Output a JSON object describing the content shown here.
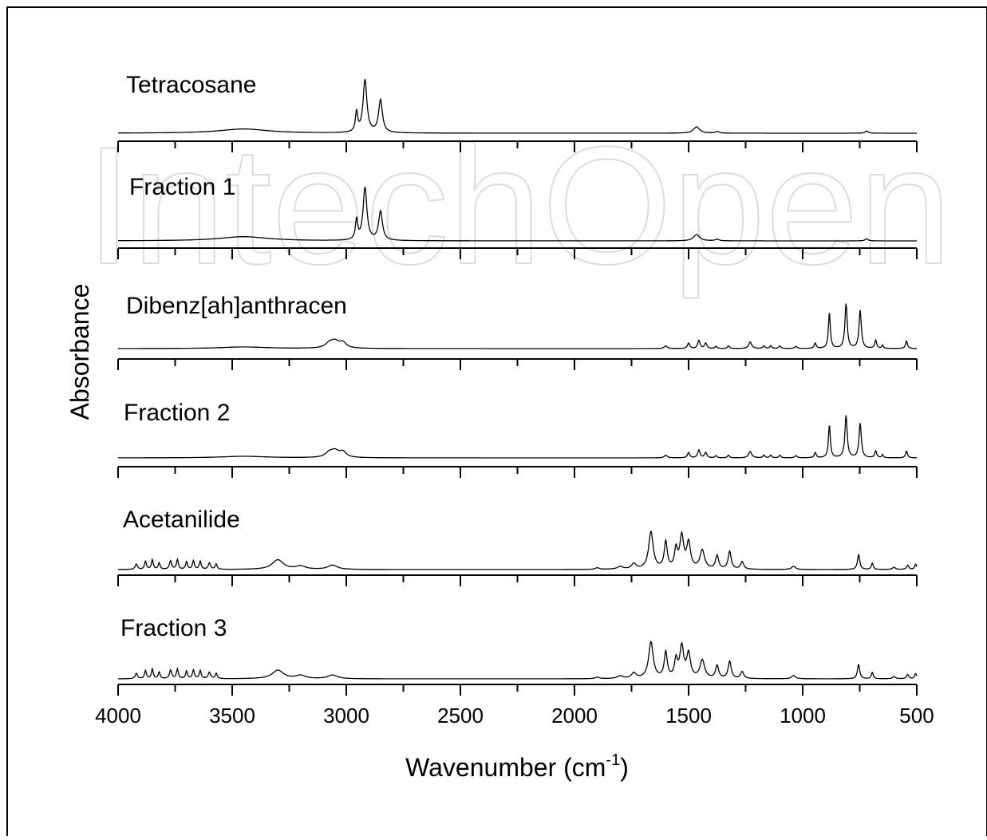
{
  "chart_data": {
    "type": "line",
    "xlabel_main": "Wavenumber (cm",
    "xlabel_sup": "-1",
    "xlabel_tail": ")",
    "ylabel": "Absorbance",
    "xlim": [
      4000,
      500
    ],
    "x_ticks": [
      4000,
      3500,
      3000,
      2500,
      2000,
      1500,
      1000,
      500
    ],
    "watermark": "IntechOpen",
    "series": [
      {
        "name": "Tetracosane",
        "peaks": [
          [
            3450,
            0.08,
            130
          ],
          [
            2955,
            0.38,
            6
          ],
          [
            2918,
            1.0,
            10
          ],
          [
            2850,
            0.62,
            10
          ],
          [
            1465,
            0.12,
            16
          ],
          [
            1375,
            0.03,
            10
          ],
          [
            720,
            0.04,
            8
          ]
        ]
      },
      {
        "name": "Fraction 1",
        "peaks": [
          [
            3450,
            0.08,
            130
          ],
          [
            2955,
            0.38,
            6
          ],
          [
            2918,
            1.0,
            10
          ],
          [
            2850,
            0.55,
            10
          ],
          [
            1465,
            0.12,
            16
          ],
          [
            1375,
            0.03,
            10
          ],
          [
            720,
            0.04,
            8
          ]
        ]
      },
      {
        "name": "Dibenz[ah]anthracen",
        "peaks": [
          [
            3450,
            0.03,
            120
          ],
          [
            3075,
            0.08,
            20
          ],
          [
            3050,
            0.12,
            22
          ],
          [
            3015,
            0.1,
            18
          ],
          [
            1600,
            0.05,
            8
          ],
          [
            1500,
            0.1,
            6
          ],
          [
            1455,
            0.15,
            6
          ],
          [
            1425,
            0.1,
            6
          ],
          [
            1380,
            0.04,
            5
          ],
          [
            1325,
            0.05,
            5
          ],
          [
            1230,
            0.12,
            8
          ],
          [
            1170,
            0.05,
            5
          ],
          [
            1140,
            0.05,
            5
          ],
          [
            1100,
            0.05,
            5
          ],
          [
            1030,
            0.04,
            6
          ],
          [
            945,
            0.1,
            5
          ],
          [
            883,
            0.66,
            5
          ],
          [
            810,
            0.82,
            6
          ],
          [
            748,
            0.7,
            6
          ],
          [
            680,
            0.15,
            5
          ],
          [
            650,
            0.06,
            4
          ],
          [
            545,
            0.14,
            5
          ]
        ]
      },
      {
        "name": "Fraction 2",
        "peaks": [
          [
            3450,
            0.03,
            120
          ],
          [
            3075,
            0.08,
            20
          ],
          [
            3050,
            0.12,
            22
          ],
          [
            3015,
            0.1,
            18
          ],
          [
            1600,
            0.05,
            8
          ],
          [
            1500,
            0.1,
            6
          ],
          [
            1455,
            0.15,
            6
          ],
          [
            1425,
            0.1,
            6
          ],
          [
            1380,
            0.04,
            5
          ],
          [
            1325,
            0.05,
            5
          ],
          [
            1230,
            0.12,
            8
          ],
          [
            1170,
            0.05,
            5
          ],
          [
            1140,
            0.05,
            5
          ],
          [
            1100,
            0.05,
            5
          ],
          [
            1030,
            0.04,
            6
          ],
          [
            945,
            0.1,
            5
          ],
          [
            883,
            0.62,
            5
          ],
          [
            810,
            0.8,
            6
          ],
          [
            748,
            0.65,
            6
          ],
          [
            680,
            0.13,
            5
          ],
          [
            650,
            0.06,
            4
          ],
          [
            545,
            0.13,
            5
          ]
        ]
      },
      {
        "name": "Acetanilide",
        "peaks": [
          [
            3920,
            0.1,
            6
          ],
          [
            3880,
            0.15,
            5
          ],
          [
            3850,
            0.18,
            5
          ],
          [
            3820,
            0.12,
            5
          ],
          [
            3770,
            0.16,
            6
          ],
          [
            3740,
            0.18,
            5
          ],
          [
            3700,
            0.14,
            5
          ],
          [
            3670,
            0.16,
            5
          ],
          [
            3640,
            0.15,
            5
          ],
          [
            3600,
            0.12,
            6
          ],
          [
            3570,
            0.1,
            5
          ],
          [
            3300,
            0.18,
            30
          ],
          [
            3200,
            0.06,
            25
          ],
          [
            3060,
            0.08,
            25
          ],
          [
            1900,
            0.03,
            10
          ],
          [
            1800,
            0.05,
            15
          ],
          [
            1740,
            0.1,
            12
          ],
          [
            1665,
            0.7,
            12
          ],
          [
            1600,
            0.5,
            8
          ],
          [
            1555,
            0.35,
            8
          ],
          [
            1530,
            0.6,
            10
          ],
          [
            1500,
            0.48,
            10
          ],
          [
            1440,
            0.35,
            12
          ],
          [
            1375,
            0.25,
            8
          ],
          [
            1320,
            0.33,
            8
          ],
          [
            1265,
            0.14,
            8
          ],
          [
            1040,
            0.06,
            10
          ],
          [
            755,
            0.28,
            6
          ],
          [
            695,
            0.12,
            5
          ],
          [
            600,
            0.04,
            8
          ],
          [
            540,
            0.08,
            6
          ],
          [
            505,
            0.1,
            5
          ]
        ]
      },
      {
        "name": "Fraction 3",
        "peaks": [
          [
            3920,
            0.1,
            6
          ],
          [
            3880,
            0.15,
            5
          ],
          [
            3850,
            0.18,
            5
          ],
          [
            3820,
            0.12,
            5
          ],
          [
            3770,
            0.16,
            6
          ],
          [
            3740,
            0.18,
            5
          ],
          [
            3700,
            0.14,
            5
          ],
          [
            3670,
            0.16,
            5
          ],
          [
            3640,
            0.15,
            5
          ],
          [
            3600,
            0.12,
            6
          ],
          [
            3570,
            0.1,
            5
          ],
          [
            3300,
            0.16,
            30
          ],
          [
            3200,
            0.06,
            25
          ],
          [
            3060,
            0.07,
            25
          ],
          [
            1900,
            0.03,
            10
          ],
          [
            1800,
            0.05,
            15
          ],
          [
            1740,
            0.1,
            12
          ],
          [
            1665,
            0.68,
            12
          ],
          [
            1600,
            0.48,
            8
          ],
          [
            1555,
            0.33,
            8
          ],
          [
            1530,
            0.58,
            10
          ],
          [
            1500,
            0.45,
            10
          ],
          [
            1440,
            0.34,
            12
          ],
          [
            1375,
            0.24,
            8
          ],
          [
            1320,
            0.32,
            8
          ],
          [
            1265,
            0.13,
            8
          ],
          [
            1040,
            0.06,
            10
          ],
          [
            755,
            0.27,
            6
          ],
          [
            695,
            0.12,
            5
          ],
          [
            600,
            0.04,
            8
          ],
          [
            540,
            0.08,
            6
          ],
          [
            505,
            0.1,
            5
          ]
        ]
      }
    ]
  }
}
